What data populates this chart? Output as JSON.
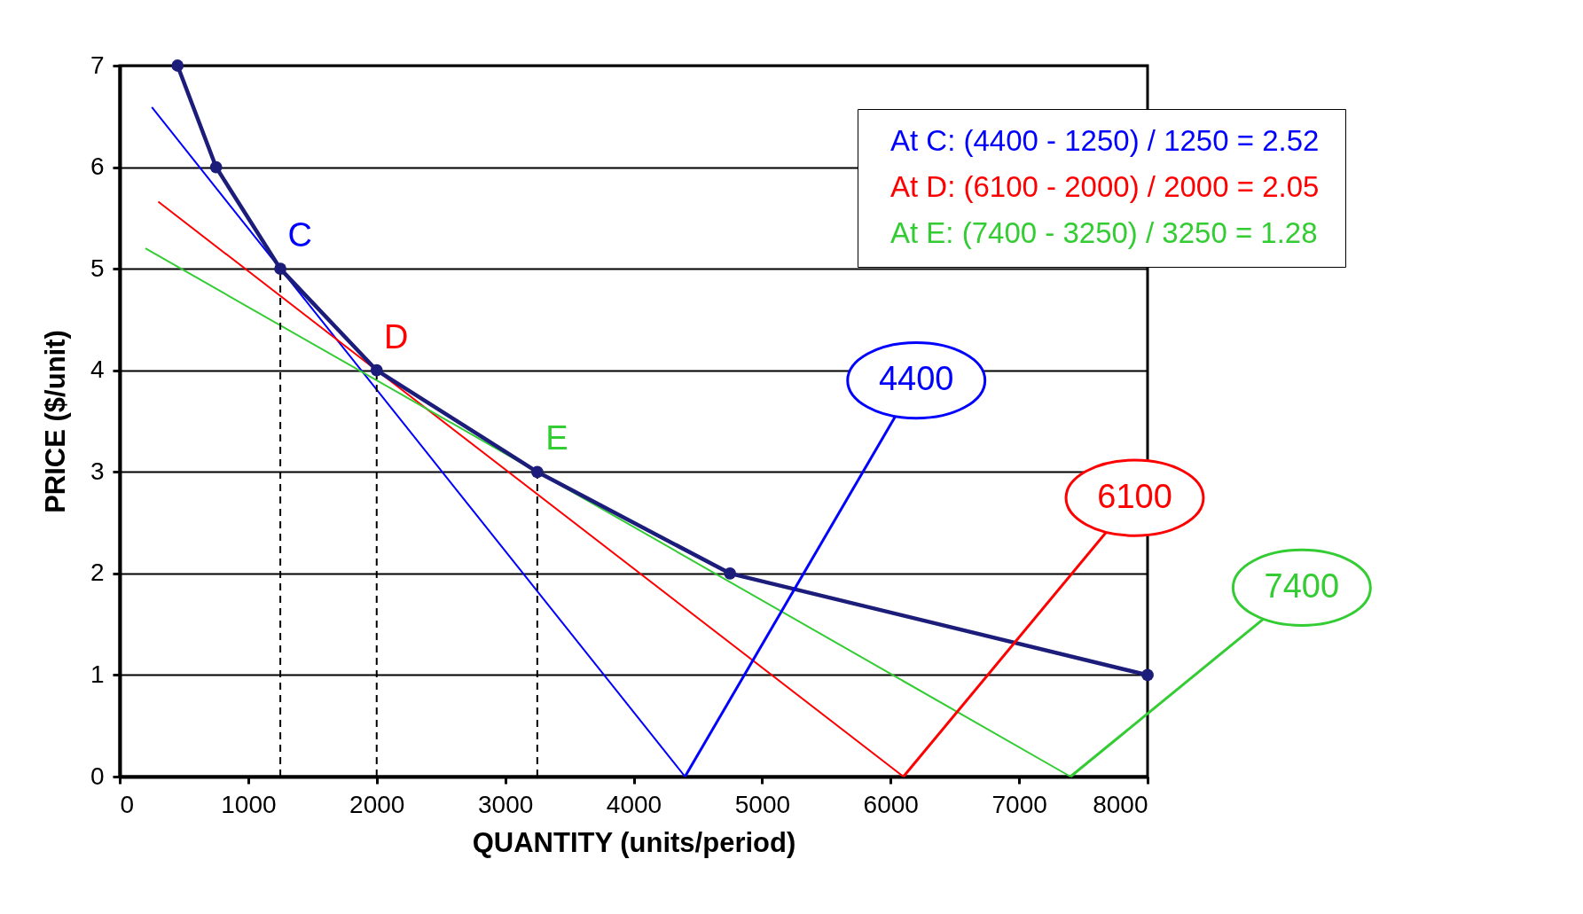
{
  "chart_data": {
    "type": "line",
    "xlabel": "QUANTITY  (units/period)",
    "ylabel": "PRICE  ($/unit)",
    "xlim": [
      0,
      8000
    ],
    "xticks": [
      0,
      1000,
      2000,
      3000,
      4000,
      5000,
      6000,
      7000,
      8000
    ],
    "ylim": [
      0,
      7
    ],
    "yticks": [
      0,
      1,
      2,
      3,
      4,
      5,
      6,
      7
    ],
    "grid": "y",
    "legend": "top right",
    "annotations": [
      {
        "text": "4400",
        "x": 4400,
        "y": 0
      },
      {
        "text": "6100",
        "x": 6100,
        "y": 0
      },
      {
        "text": "7400",
        "x": 7400,
        "y": 0
      }
    ],
    "series": [
      {
        "name": "At C:  (4400 - 1250) / 1250 = 2.52",
        "color": "#0000ff",
        "x": [
          250,
          1250,
          4400
        ],
        "values": [
          6.59,
          5,
          0
        ],
        "value_labels": [
          null,
          "C",
          null
        ]
      },
      {
        "name": "At D:  (6100 - 2000) / 2000 = 2.05",
        "color": "#ff0000",
        "x": [
          300,
          2000,
          6100
        ],
        "values": [
          5.66,
          4,
          0
        ],
        "value_labels": [
          null,
          "D",
          null
        ]
      },
      {
        "name": "At E:  (7400 - 3250) / 3250 = 1.28",
        "color": "#33cc33",
        "x": [
          200,
          3250,
          7400
        ],
        "values": [
          5.2,
          3,
          0
        ],
        "value_labels": [
          null,
          "E",
          null
        ]
      },
      {
        "color": "#000000",
        "line_style": "dashed",
        "x": [
          1250,
          1250
        ],
        "values": [
          0,
          5
        ]
      },
      {
        "color": "#000000",
        "line_style": "dashed",
        "x": [
          2000,
          2000
        ],
        "values": [
          0,
          4
        ]
      },
      {
        "color": "#000000",
        "line_style": "dashed",
        "x": [
          3250,
          3250
        ],
        "values": [
          0,
          3
        ]
      },
      {
        "color": "#1c1c7a",
        "marker": "circle",
        "x": [
          450,
          750,
          1250,
          2000,
          3250,
          4750,
          8000
        ],
        "values": [
          7,
          6,
          5,
          4,
          3,
          2,
          1
        ]
      }
    ]
  }
}
